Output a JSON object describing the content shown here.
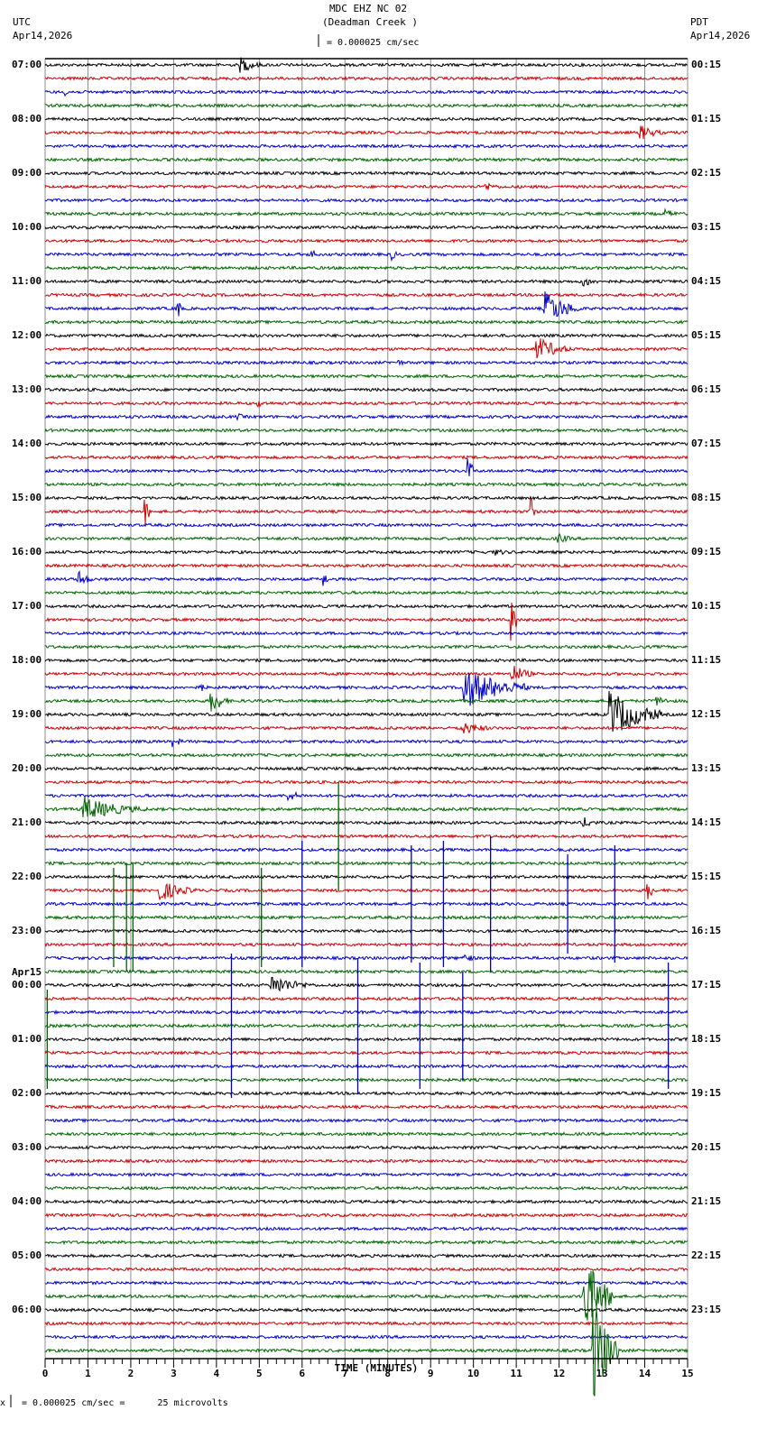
{
  "header": {
    "station": "MDC EHZ NC 02",
    "location": "(Deadman Creek )",
    "scale": "= 0.000025 cm/sec",
    "left_tz": "UTC",
    "left_date": "Apr14,2026",
    "right_tz": "PDT",
    "right_date": "Apr14,2026"
  },
  "footer": {
    "scale_note": "= 0.000025 cm/sec =      25 microvolts",
    "marker": "x"
  },
  "colors": {
    "trace": [
      "#000000",
      "#d00000",
      "#0000c8",
      "#006400"
    ],
    "grid": "#8c8c8c"
  },
  "chart_data": {
    "type": "line",
    "title": "MDC EHZ NC 02 (Deadman Creek )",
    "xlabel": "TIME (MINUTES)",
    "xlim": [
      0,
      15
    ],
    "x_ticks": [
      "0",
      "1",
      "2",
      "3",
      "4",
      "5",
      "6",
      "7",
      "8",
      "9",
      "10",
      "11",
      "12",
      "13",
      "14",
      "15"
    ],
    "traces_per_hour": 4,
    "grid": true,
    "utc_labels": [
      "07:00",
      "08:00",
      "09:00",
      "10:00",
      "11:00",
      "12:00",
      "13:00",
      "14:00",
      "15:00",
      "16:00",
      "17:00",
      "18:00",
      "19:00",
      "20:00",
      "21:00",
      "22:00",
      "23:00",
      "00:00",
      "01:00",
      "02:00",
      "03:00",
      "04:00",
      "05:00",
      "06:00"
    ],
    "utc_date_change": {
      "index": 17,
      "label": "Apr15"
    },
    "pdt_labels": [
      "00:15",
      "01:15",
      "02:15",
      "03:15",
      "04:15",
      "05:15",
      "06:15",
      "07:15",
      "08:15",
      "09:15",
      "10:15",
      "11:15",
      "12:15",
      "13:15",
      "14:15",
      "15:15",
      "16:15",
      "17:15",
      "18:15",
      "19:15",
      "20:15",
      "21:15",
      "22:15",
      "23:15"
    ],
    "events": [
      {
        "trace": 0,
        "t": 4.6,
        "amp": 9,
        "dur": 0.5
      },
      {
        "trace": 2,
        "t": 0.5,
        "amp": 4,
        "dur": 0.4
      },
      {
        "trace": 5,
        "t": 13.9,
        "amp": 9,
        "dur": 0.6
      },
      {
        "trace": 9,
        "t": 10.3,
        "amp": 5,
        "dur": 0.5
      },
      {
        "trace": 11,
        "t": 14.5,
        "amp": 5,
        "dur": 0.5
      },
      {
        "trace": 14,
        "t": 6.2,
        "amp": 8,
        "dur": 0.1
      },
      {
        "trace": 14,
        "t": 8.1,
        "amp": 7,
        "dur": 0.1
      },
      {
        "trace": 16,
        "t": 12.6,
        "amp": 6,
        "dur": 0.4
      },
      {
        "trace": 18,
        "t": 3.1,
        "amp": 12,
        "dur": 0.1
      },
      {
        "trace": 18,
        "t": 11.7,
        "amp": 20,
        "dur": 0.8
      },
      {
        "trace": 21,
        "t": 11.5,
        "amp": 14,
        "dur": 0.8
      },
      {
        "trace": 22,
        "t": 8.2,
        "amp": 4,
        "dur": 0.4
      },
      {
        "trace": 25,
        "t": 5.0,
        "amp": 4,
        "dur": 0.4
      },
      {
        "trace": 26,
        "t": 4.5,
        "amp": 4,
        "dur": 0.3
      },
      {
        "trace": 30,
        "t": 9.9,
        "amp": 14,
        "dur": 0.1
      },
      {
        "trace": 33,
        "t": 2.35,
        "amp": 14,
        "dur": 0.1
      },
      {
        "trace": 33,
        "t": 11.35,
        "amp": 18,
        "dur": 0.1
      },
      {
        "trace": 35,
        "t": 12.0,
        "amp": 6,
        "dur": 0.4
      },
      {
        "trace": 36,
        "t": 10.5,
        "amp": 4,
        "dur": 0.6
      },
      {
        "trace": 38,
        "t": 0.8,
        "amp": 10,
        "dur": 0.3
      },
      {
        "trace": 38,
        "t": 6.5,
        "amp": 9,
        "dur": 0.1
      },
      {
        "trace": 41,
        "t": 10.9,
        "amp": 30,
        "dur": 0.1
      },
      {
        "trace": 45,
        "t": 10.9,
        "amp": 12,
        "dur": 0.5
      },
      {
        "trace": 46,
        "t": 9.8,
        "amp": 24,
        "dur": 1.5
      },
      {
        "trace": 46,
        "t": 3.65,
        "amp": 6,
        "dur": 0.1
      },
      {
        "trace": 47,
        "t": 3.9,
        "amp": 14,
        "dur": 0.4
      },
      {
        "trace": 47,
        "t": 14.3,
        "amp": 6,
        "dur": 0.4
      },
      {
        "trace": 48,
        "t": 13.2,
        "amp": 28,
        "dur": 1.2
      },
      {
        "trace": 49,
        "t": 9.7,
        "amp": 8,
        "dur": 0.9
      },
      {
        "trace": 50,
        "t": 3.0,
        "amp": 6,
        "dur": 0.3
      },
      {
        "trace": 54,
        "t": 5.7,
        "amp": 6,
        "dur": 0.5
      },
      {
        "trace": 55,
        "t": 0.9,
        "amp": 14,
        "dur": 1.5
      },
      {
        "trace": 56,
        "t": 12.6,
        "amp": 6,
        "dur": 0.4
      },
      {
        "trace": 61,
        "t": 2.7,
        "amp": 12,
        "dur": 0.9
      },
      {
        "trace": 61,
        "t": 14.1,
        "amp": 12,
        "dur": 0.1
      },
      {
        "trace": 68,
        "t": 5.3,
        "amp": 12,
        "dur": 1.0
      },
      {
        "trace": 66,
        "t": 9.8,
        "amp": 6,
        "dur": 0.3
      },
      {
        "trace": 91,
        "t": 12.6,
        "amp": 45,
        "dur": 0.7
      },
      {
        "trace": 95,
        "t": 12.8,
        "amp": 60,
        "dur": 0.6
      }
    ],
    "spikes": [
      {
        "trace": 57,
        "t": 6.85,
        "len": 120,
        "color": 3
      },
      {
        "trace": 63,
        "t": 1.6,
        "len": 110,
        "color": 3
      },
      {
        "trace": 63,
        "t": 1.9,
        "len": 120,
        "color": 3
      },
      {
        "trace": 63,
        "t": 2.05,
        "len": 120,
        "color": 3
      },
      {
        "trace": 63,
        "t": 5.05,
        "len": 110,
        "color": 3
      },
      {
        "trace": 62,
        "t": 6.0,
        "len": 140,
        "color": 2
      },
      {
        "trace": 62,
        "t": 8.55,
        "len": 130,
        "color": 2
      },
      {
        "trace": 62,
        "t": 9.3,
        "len": 140,
        "color": 2
      },
      {
        "trace": 62,
        "t": 10.4,
        "len": 150,
        "color": 2
      },
      {
        "trace": 62,
        "t": 12.2,
        "len": 110,
        "color": 2
      },
      {
        "trace": 62,
        "t": 13.3,
        "len": 130,
        "color": 2
      },
      {
        "trace": 71,
        "t": 4.35,
        "len": 160,
        "color": 2
      },
      {
        "trace": 71,
        "t": 7.3,
        "len": 150,
        "color": 2
      },
      {
        "trace": 71,
        "t": 9.75,
        "len": 120,
        "color": 2
      },
      {
        "trace": 71,
        "t": 14.55,
        "len": 140,
        "color": 2
      },
      {
        "trace": 71,
        "t": 8.75,
        "len": 140,
        "color": 2
      },
      {
        "trace": 72,
        "t": 0.05,
        "len": 110,
        "color": 3
      }
    ]
  }
}
